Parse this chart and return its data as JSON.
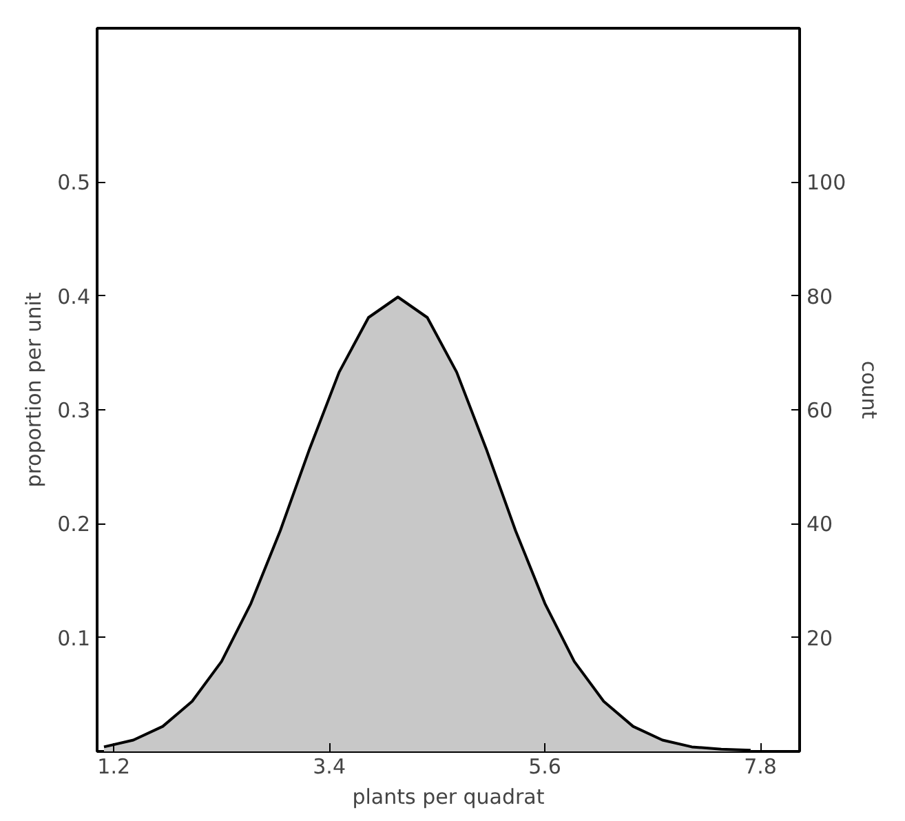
{
  "chart_data": {
    "type": "area",
    "xlabel": "plants per quadrat",
    "ylabel": "proportion per unit",
    "y2label": "count",
    "x": [
      1.1,
      1.4,
      1.7,
      2.0,
      2.3,
      2.6,
      2.9,
      3.2,
      3.5,
      3.8,
      4.1,
      4.4,
      4.7,
      5.0,
      5.3,
      5.6,
      5.9,
      6.2,
      6.5,
      6.8,
      7.1,
      7.4,
      7.7
    ],
    "series": [
      {
        "color": "#c8c8c8",
        "values": [
          0.004,
          0.01,
          0.022,
          0.044,
          0.079,
          0.13,
          0.194,
          0.266,
          0.333,
          0.381,
          0.399,
          0.381,
          0.333,
          0.266,
          0.194,
          0.13,
          0.079,
          0.044,
          0.022,
          0.01,
          0.004,
          0.002,
          0.001
        ]
      }
    ],
    "xlim": [
      1.03,
      8.2
    ],
    "xticks": [
      1.2,
      3.4,
      5.6,
      7.8
    ],
    "ylim": [
      0,
      0.635
    ],
    "yticks": [
      0.1,
      0.2,
      0.3,
      0.4,
      0.5
    ],
    "y2lim": [
      0,
      127
    ],
    "y2ticks": [
      20,
      40,
      60,
      80,
      100
    ],
    "grid": false
  }
}
